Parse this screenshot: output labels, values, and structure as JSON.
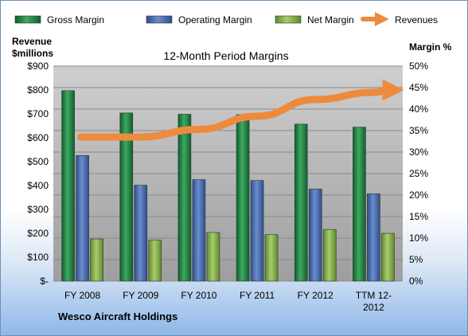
{
  "chart_data": {
    "type": "bar",
    "title": "12-Month Period Margins",
    "company": "Wesco Aircraft Holdings",
    "y_left_label_lines": [
      "Revenue",
      "$millions"
    ],
    "y_right_label": "Margin %",
    "y_left_ticks": [
      "$-",
      "$100",
      "$200",
      "$300",
      "$400",
      "$500",
      "$600",
      "$700",
      "$800",
      "$900"
    ],
    "y_right_ticks": [
      "0%",
      "5%",
      "10%",
      "15%",
      "20%",
      "25%",
      "30%",
      "35%",
      "40%",
      "45%",
      "50%"
    ],
    "y_left_range": [
      0,
      900
    ],
    "y_right_range": [
      0,
      50
    ],
    "categories": [
      [
        "FY 2008"
      ],
      [
        "FY 2009"
      ],
      [
        "FY 2010"
      ],
      [
        "FY 2011"
      ],
      [
        "FY 2012"
      ],
      [
        "TTM 12-",
        "2012"
      ]
    ],
    "series": [
      {
        "name": "Gross Margin",
        "axis": "right",
        "color": "#2e8b4a",
        "values": [
          44.3,
          39.1,
          38.8,
          38.7,
          36.5,
          35.8
        ]
      },
      {
        "name": "Operating Margin",
        "axis": "right",
        "color": "#4f73b5",
        "values": [
          29.2,
          22.3,
          23.6,
          23.4,
          21.4,
          20.3
        ]
      },
      {
        "name": "Net Margin",
        "axis": "right",
        "color": "#8db356",
        "values": [
          9.8,
          9.5,
          11.3,
          10.8,
          12.0,
          11.1
        ]
      }
    ],
    "line_series": {
      "name": "Revenues",
      "axis": "left",
      "color": "#ee8a3c",
      "values": [
        603,
        603,
        635,
        690,
        760,
        790
      ]
    },
    "legend_placement": "top",
    "grid": true
  }
}
